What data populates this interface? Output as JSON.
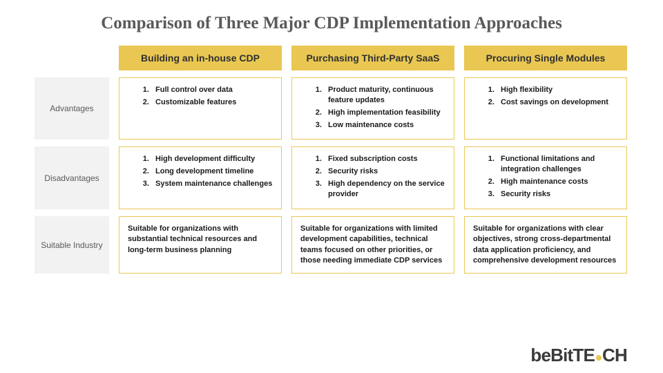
{
  "title": "Comparison of Three Major CDP Implementation Approaches",
  "colors": {
    "accent": "#e9c752",
    "label_bg": "#f2f2f2",
    "title_color": "#595959",
    "label_text": "#595959",
    "cell_border": "#e9c752",
    "body_text": "#1a1a1a"
  },
  "row_labels": {
    "advantages": "Advantages",
    "disadvantages": "Disadvantages",
    "suitable": "Suitable Industry"
  },
  "columns": {
    "col1": {
      "header": "Building an in-house CDP",
      "advantages": [
        "Full control over data",
        "Customizable features"
      ],
      "disadvantages": [
        "High development difficulty",
        "Long development timeline",
        "System maintenance challenges"
      ],
      "suitable": "Suitable for organizations with substantial technical resources and long-term business planning"
    },
    "col2": {
      "header": "Purchasing Third-Party SaaS",
      "advantages": [
        "Product maturity, continuous feature updates",
        "High implementation feasibility",
        "Low maintenance costs"
      ],
      "disadvantages": [
        "Fixed subscription costs",
        "Security risks",
        "High dependency on the service provider"
      ],
      "suitable": "Suitable for organizations with limited development capabilities, technical teams focused on other priorities, or those needing immediate CDP services"
    },
    "col3": {
      "header": "Procuring Single Modules",
      "advantages": [
        "High flexibility",
        "Cost savings on development"
      ],
      "disadvantages": [
        "Functional limitations and integration challenges",
        "High maintenance costs",
        "Security risks"
      ],
      "suitable": "Suitable for organizations with clear objectives, strong cross-departmental data application proficiency, and comprehensive development resources"
    }
  },
  "logo": {
    "text_be": "be",
    "text_bit": "Bit",
    "text_tech": "T",
    "text_tech2": "CH"
  }
}
